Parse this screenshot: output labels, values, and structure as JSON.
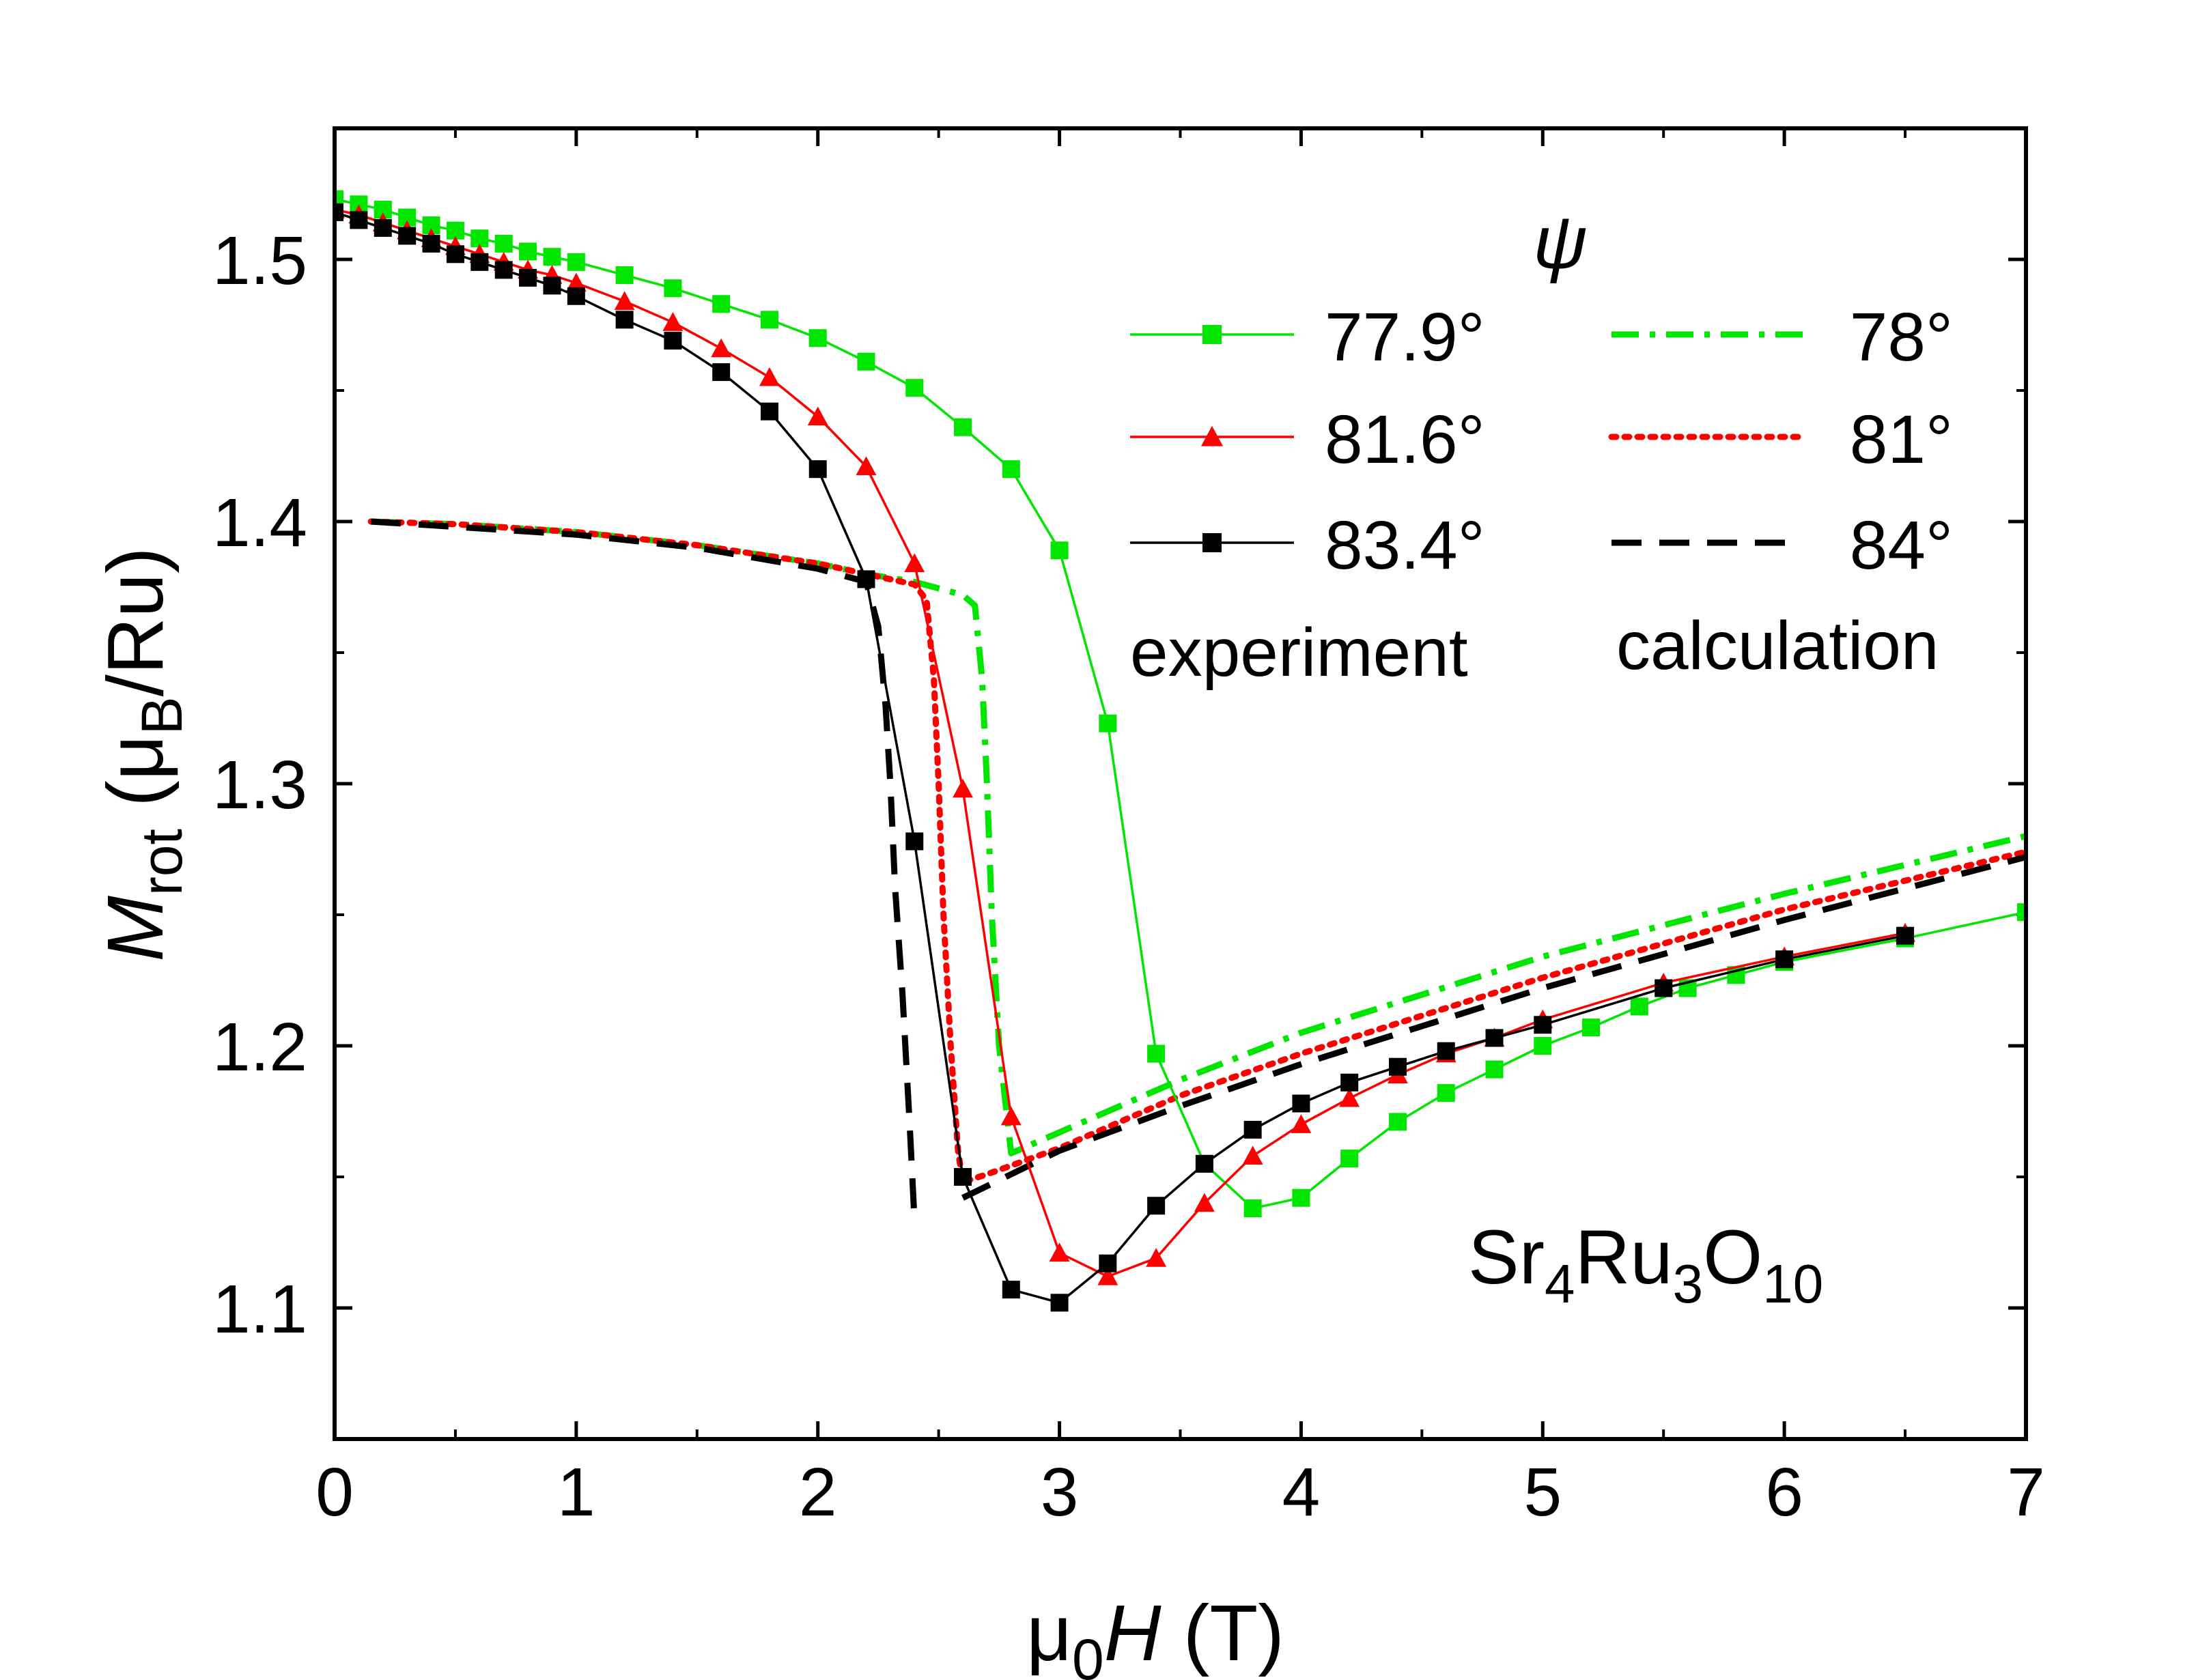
{
  "chart_data": {
    "type": "line",
    "xlabel": {
      "prefix": "μ",
      "sub": "0",
      "italic": "H",
      "suffix": " (T)"
    },
    "ylabel": {
      "italic": "M",
      "sub": "rot",
      "mid": " (μ",
      "sub2": "B",
      "suffix": "/Ru)"
    },
    "xlim": [
      0,
      7
    ],
    "ylim": [
      1.05,
      1.55
    ],
    "x_ticks": [
      0,
      1,
      2,
      3,
      4,
      5,
      6,
      7
    ],
    "x_tick_labels": [
      "0",
      "1",
      "2",
      "3",
      "4",
      "5",
      "6",
      "7"
    ],
    "y_ticks": [
      1.1,
      1.2,
      1.3,
      1.4,
      1.5
    ],
    "y_tick_labels": [
      "1.1",
      "1.2",
      "1.3",
      "1.4",
      "1.5"
    ],
    "grid": false,
    "legend": {
      "title": "ψ",
      "placement": "top-right",
      "experiment_caption": "experiment",
      "calculation_caption": "calculation"
    },
    "annotation": {
      "base": "Sr",
      "s1": "4",
      "m1": "Ru",
      "s2": "3",
      "m2": "O",
      "s3": "10"
    },
    "series": [
      {
        "name": "77.9°",
        "group": "experiment",
        "color": "#00e600",
        "marker": "square",
        "style": "solid",
        "x": [
          0,
          0.1,
          0.2,
          0.3,
          0.4,
          0.5,
          0.6,
          0.7,
          0.8,
          0.9,
          1.0,
          1.2,
          1.4,
          1.6,
          1.8,
          2.0,
          2.2,
          2.4,
          2.6,
          2.8,
          3.0,
          3.2,
          3.4,
          3.6,
          3.8,
          4.0,
          4.2,
          4.4,
          4.6,
          4.8,
          5.0,
          5.2,
          5.4,
          5.6,
          5.8,
          6.0,
          6.5,
          7.0
        ],
        "y": [
          1.523,
          1.521,
          1.519,
          1.516,
          1.513,
          1.511,
          1.508,
          1.506,
          1.503,
          1.501,
          1.499,
          1.494,
          1.489,
          1.483,
          1.477,
          1.47,
          1.461,
          1.451,
          1.436,
          1.42,
          1.389,
          1.323,
          1.197,
          1.155,
          1.138,
          1.142,
          1.157,
          1.171,
          1.182,
          1.191,
          1.2,
          1.207,
          1.215,
          1.222,
          1.227,
          1.232,
          1.241,
          1.251
        ]
      },
      {
        "name": "81.6°",
        "group": "experiment",
        "color": "#ff0000",
        "marker": "triangle",
        "style": "solid",
        "x": [
          0,
          0.1,
          0.2,
          0.3,
          0.4,
          0.5,
          0.6,
          0.7,
          0.8,
          0.9,
          1.0,
          1.2,
          1.4,
          1.6,
          1.8,
          2.0,
          2.2,
          2.4,
          2.6,
          2.8,
          3.0,
          3.2,
          3.4,
          3.6,
          3.8,
          4.0,
          4.2,
          4.4,
          4.6,
          4.8,
          5.0,
          5.5,
          6.0,
          6.5
        ],
        "y": [
          1.519,
          1.517,
          1.514,
          1.511,
          1.508,
          1.505,
          1.502,
          1.499,
          1.496,
          1.494,
          1.491,
          1.484,
          1.476,
          1.466,
          1.455,
          1.44,
          1.421,
          1.384,
          1.298,
          1.173,
          1.121,
          1.112,
          1.119,
          1.14,
          1.158,
          1.17,
          1.18,
          1.189,
          1.197,
          1.203,
          1.21,
          1.224,
          1.234,
          1.243
        ]
      },
      {
        "name": "83.4°",
        "group": "experiment",
        "color": "#000000",
        "marker": "square",
        "style": "solid",
        "x": [
          0,
          0.1,
          0.2,
          0.3,
          0.4,
          0.5,
          0.6,
          0.7,
          0.8,
          0.9,
          1.0,
          1.2,
          1.4,
          1.6,
          1.8,
          2.0,
          2.2,
          2.4,
          2.6,
          2.8,
          3.0,
          3.2,
          3.4,
          3.6,
          3.8,
          4.0,
          4.2,
          4.4,
          4.6,
          4.8,
          5.0,
          5.5,
          6.0,
          6.5
        ],
        "y": [
          1.518,
          1.515,
          1.512,
          1.509,
          1.506,
          1.502,
          1.499,
          1.496,
          1.493,
          1.49,
          1.486,
          1.477,
          1.469,
          1.457,
          1.442,
          1.42,
          1.378,
          1.278,
          1.15,
          1.107,
          1.102,
          1.117,
          1.139,
          1.155,
          1.168,
          1.178,
          1.186,
          1.192,
          1.198,
          1.203,
          1.208,
          1.222,
          1.233,
          1.242
        ]
      },
      {
        "name": "78°",
        "group": "calculation",
        "color": "#00e600",
        "marker": "none",
        "style": "dashdot",
        "x": [
          0.15,
          0.5,
          1.0,
          1.5,
          2.0,
          2.2,
          2.4,
          2.6,
          2.65,
          2.68,
          2.7,
          2.72,
          2.75,
          2.8,
          3.0,
          3.5,
          4.0,
          5.0,
          6.0,
          7.0
        ],
        "y": [
          1.4,
          1.399,
          1.396,
          1.391,
          1.384,
          1.38,
          1.377,
          1.372,
          1.368,
          1.34,
          1.3,
          1.25,
          1.2,
          1.159,
          1.167,
          1.187,
          1.205,
          1.234,
          1.258,
          1.28
        ]
      },
      {
        "name": "81°",
        "group": "calculation",
        "color": "#ff0000",
        "marker": "none",
        "style": "dotted",
        "x": [
          0.15,
          0.5,
          1.0,
          1.5,
          2.0,
          2.2,
          2.4,
          2.45,
          2.48,
          2.5,
          2.52,
          2.55,
          2.58,
          2.6,
          2.7,
          3.0,
          3.5,
          4.0,
          5.0,
          6.0,
          7.0
        ],
        "y": [
          1.4,
          1.399,
          1.396,
          1.391,
          1.384,
          1.38,
          1.376,
          1.37,
          1.34,
          1.3,
          1.25,
          1.2,
          1.16,
          1.148,
          1.151,
          1.161,
          1.181,
          1.197,
          1.226,
          1.252,
          1.274
        ]
      },
      {
        "name": "84°",
        "group": "calculation",
        "color": "#000000",
        "marker": "none",
        "style": "dashed",
        "x": [
          0.15,
          0.5,
          1.0,
          1.5,
          2.0,
          2.2,
          2.25,
          2.28,
          2.3,
          2.32,
          2.35,
          2.38,
          2.4
        ],
        "y": [
          1.4,
          1.398,
          1.395,
          1.39,
          1.382,
          1.377,
          1.36,
          1.33,
          1.3,
          1.26,
          1.22,
          1.17,
          1.133
        ],
        "branch": {
          "x": [
            2.6,
            3.0,
            3.5,
            4.0,
            5.0,
            6.0,
            7.0
          ],
          "y": [
            1.142,
            1.16,
            1.177,
            1.193,
            1.222,
            1.248,
            1.272
          ]
        }
      }
    ]
  }
}
